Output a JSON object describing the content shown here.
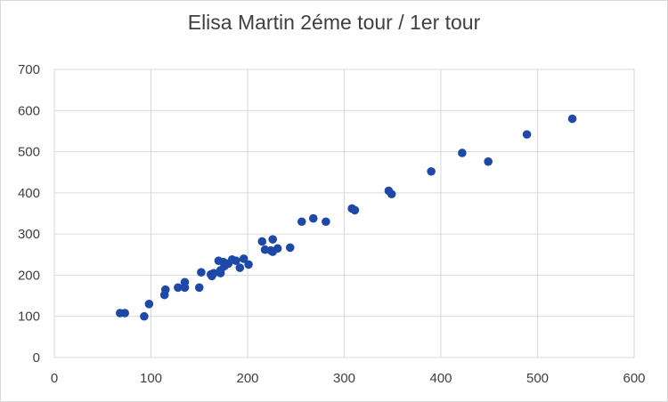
{
  "chart_data": {
    "type": "scatter",
    "title": "Elisa Martin 2éme tour / 1er tour",
    "xlabel": "",
    "ylabel": "",
    "xlim": [
      0,
      600
    ],
    "ylim": [
      0,
      700
    ],
    "x_ticks": [
      0,
      100,
      200,
      300,
      400,
      500,
      600
    ],
    "y_ticks": [
      0,
      100,
      200,
      300,
      400,
      500,
      600,
      700
    ],
    "grid": true,
    "legend": "none",
    "marker_color": "#1f49a8",
    "points": [
      [
        68,
        108
      ],
      [
        73,
        108
      ],
      [
        93,
        100
      ],
      [
        98,
        130
      ],
      [
        114,
        152
      ],
      [
        115,
        165
      ],
      [
        128,
        170
      ],
      [
        135,
        183
      ],
      [
        135,
        170
      ],
      [
        150,
        170
      ],
      [
        152,
        207
      ],
      [
        162,
        202
      ],
      [
        163,
        198
      ],
      [
        165,
        205
      ],
      [
        170,
        235
      ],
      [
        172,
        212
      ],
      [
        172,
        205
      ],
      [
        175,
        232
      ],
      [
        176,
        222
      ],
      [
        180,
        228
      ],
      [
        184,
        238
      ],
      [
        188,
        235
      ],
      [
        192,
        218
      ],
      [
        196,
        240
      ],
      [
        201,
        226
      ],
      [
        215,
        282
      ],
      [
        218,
        262
      ],
      [
        224,
        260
      ],
      [
        226,
        287
      ],
      [
        226,
        257
      ],
      [
        231,
        265
      ],
      [
        244,
        267
      ],
      [
        256,
        330
      ],
      [
        268,
        338
      ],
      [
        281,
        330
      ],
      [
        308,
        362
      ],
      [
        311,
        358
      ],
      [
        346,
        405
      ],
      [
        349,
        397
      ],
      [
        390,
        452
      ],
      [
        422,
        497
      ],
      [
        449,
        476
      ],
      [
        489,
        542
      ],
      [
        536,
        580
      ]
    ]
  }
}
